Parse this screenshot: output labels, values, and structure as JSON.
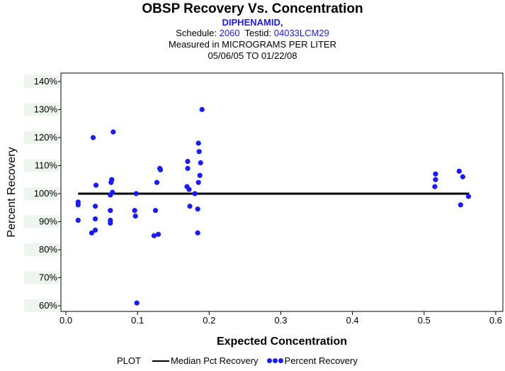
{
  "header": {
    "title": "OBSP Recovery Vs. Concentration",
    "compound": "DIPHENAMID,",
    "schedule_label": "Schedule:",
    "schedule_value": "2060",
    "testid_label": "Testid:",
    "testid_value": "04033LCM29",
    "measured": "Measured in  MICROGRAMS PER LITER",
    "daterange": "05/06/05 TO 01/22/08"
  },
  "legend": {
    "plot_label": "PLOT",
    "median_label": "Median Pct Recovery",
    "points_label": "Percent Recovery"
  },
  "colors": {
    "points": "#1a1aff",
    "median": "#000000",
    "axis": "#000000",
    "band": "#eef4ee"
  },
  "chart_data": {
    "type": "scatter",
    "title": "OBSP Recovery Vs. Concentration",
    "xlabel": "Expected Concentration",
    "ylabel": "Percent Recovery",
    "xlim": [
      -0.007,
      0.61
    ],
    "ylim": [
      58,
      143
    ],
    "x_ticks": [
      0.0,
      0.1,
      0.2,
      0.3,
      0.4,
      0.5,
      0.6
    ],
    "x_tick_labels": [
      "0.0",
      "0.1",
      "0.2",
      "0.3",
      "0.4",
      "0.5",
      "0.6"
    ],
    "y_ticks": [
      60,
      70,
      80,
      90,
      100,
      110,
      120,
      130,
      140
    ],
    "y_tick_labels": [
      "60%",
      "70%",
      "80%",
      "90%",
      "100%",
      "110%",
      "120%",
      "130%",
      "140%"
    ],
    "median": {
      "name": "Median Pct Recovery",
      "x": [
        0.017,
        0.563
      ],
      "y": [
        100,
        100
      ]
    },
    "series": [
      {
        "name": "Percent Recovery",
        "points": [
          [
            0.017,
            97
          ],
          [
            0.017,
            96
          ],
          [
            0.017,
            90.5
          ],
          [
            0.036,
            86
          ],
          [
            0.038,
            120
          ],
          [
            0.041,
            87
          ],
          [
            0.041,
            91
          ],
          [
            0.041,
            95.5
          ],
          [
            0.042,
            103
          ],
          [
            0.062,
            89.5
          ],
          [
            0.062,
            90.5
          ],
          [
            0.062,
            94
          ],
          [
            0.062,
            99.5
          ],
          [
            0.063,
            104
          ],
          [
            0.064,
            105
          ],
          [
            0.065,
            100.5
          ],
          [
            0.066,
            122
          ],
          [
            0.096,
            94
          ],
          [
            0.097,
            92
          ],
          [
            0.098,
            100
          ],
          [
            0.099,
            61
          ],
          [
            0.123,
            85
          ],
          [
            0.125,
            94
          ],
          [
            0.127,
            104
          ],
          [
            0.129,
            85.5
          ],
          [
            0.131,
            109
          ],
          [
            0.132,
            108.5
          ],
          [
            0.169,
            102.5
          ],
          [
            0.17,
            111.5
          ],
          [
            0.17,
            109
          ],
          [
            0.172,
            101.5
          ],
          [
            0.173,
            95.5
          ],
          [
            0.18,
            100
          ],
          [
            0.184,
            86
          ],
          [
            0.184,
            94.5
          ],
          [
            0.185,
            104
          ],
          [
            0.185,
            118
          ],
          [
            0.186,
            115
          ],
          [
            0.187,
            106.5
          ],
          [
            0.188,
            111
          ],
          [
            0.19,
            130
          ],
          [
            0.515,
            102.5
          ],
          [
            0.516,
            107
          ],
          [
            0.516,
            105
          ],
          [
            0.549,
            108
          ],
          [
            0.551,
            96
          ],
          [
            0.554,
            106
          ],
          [
            0.562,
            99
          ]
        ]
      }
    ]
  }
}
